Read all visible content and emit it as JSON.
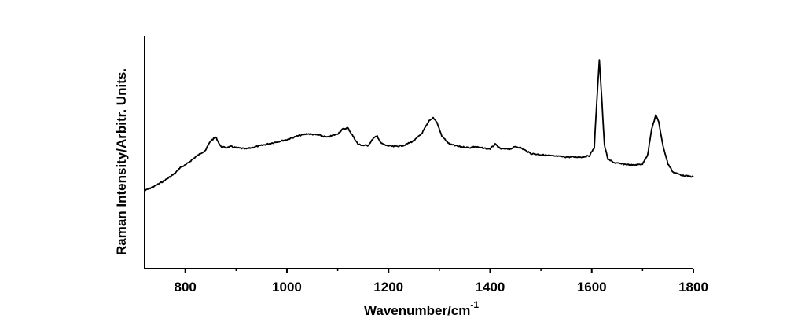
{
  "chart_data": {
    "type": "line",
    "title": "",
    "xlabel": "Wavenumber/cm",
    "xlabel_superscript": "-1",
    "ylabel": "Raman Intensity/Arbitr. Units.",
    "xlim": [
      720,
      1800
    ],
    "ylim": [
      0,
      100
    ],
    "x_ticks": [
      800,
      1000,
      1200,
      1400,
      1600,
      1800
    ],
    "x_tick_labels": [
      "800",
      "1000",
      "1200",
      "1400",
      "1600",
      "1800"
    ],
    "y_tick_labels_shown": false,
    "grid": false,
    "series": [
      {
        "x": [
          720,
          740,
          760,
          780,
          790,
          800,
          820,
          840,
          850,
          860,
          870,
          880,
          890,
          900,
          920,
          950,
          980,
          1000,
          1020,
          1040,
          1060,
          1080,
          1100,
          1110,
          1120,
          1130,
          1140,
          1150,
          1160,
          1170,
          1178,
          1185,
          1195,
          1210,
          1230,
          1250,
          1265,
          1280,
          1288,
          1295,
          1305,
          1320,
          1340,
          1360,
          1370,
          1380,
          1400,
          1410,
          1420,
          1440,
          1450,
          1460,
          1480,
          1500,
          1520,
          1550,
          1580,
          1595,
          1605,
          1610,
          1615,
          1620,
          1625,
          1632,
          1645,
          1660,
          1680,
          1700,
          1710,
          1718,
          1726,
          1732,
          1740,
          1750,
          1760,
          1780,
          1800
        ],
        "y": [
          33.5,
          35.5,
          38,
          41,
          43.5,
          44.5,
          48,
          51,
          55,
          56.5,
          52.5,
          52,
          52.5,
          52,
          51.5,
          53,
          54.5,
          55.5,
          57,
          58,
          57.5,
          56.5,
          58,
          60,
          60.5,
          57,
          53.5,
          53,
          53,
          56,
          57,
          54,
          53,
          52.5,
          53,
          55,
          58,
          63.5,
          65,
          63,
          57,
          53.5,
          52.5,
          52,
          52.5,
          52,
          51.5,
          53.5,
          51.5,
          51.5,
          52.5,
          52,
          49.5,
          49,
          48.5,
          48,
          48,
          48.5,
          52,
          72,
          90,
          72,
          53,
          47,
          45.5,
          45,
          44.5,
          45,
          49,
          60,
          66,
          63,
          53,
          45,
          41.5,
          40,
          39.5
        ]
      }
    ]
  }
}
